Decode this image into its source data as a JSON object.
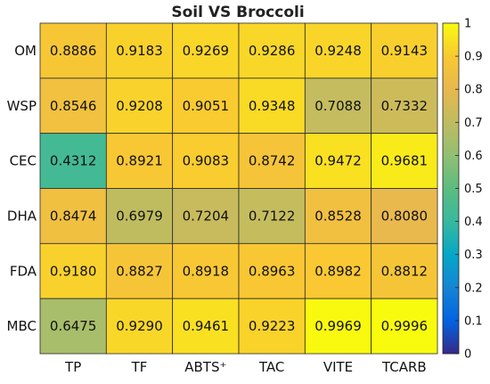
{
  "chart_data": {
    "type": "heatmap",
    "title": "Soil VS Broccoli",
    "rows": [
      "OM",
      "WSP",
      "CEC",
      "DHA",
      "FDA",
      "MBC"
    ],
    "columns": [
      "TP",
      "TF",
      "ABTS⁺",
      "TAC",
      "VITE",
      "TCARB"
    ],
    "values": [
      [
        0.8886,
        0.9183,
        0.9269,
        0.9286,
        0.9248,
        0.9143
      ],
      [
        0.8546,
        0.9208,
        0.9051,
        0.9348,
        0.7088,
        0.7332
      ],
      [
        0.4312,
        0.8921,
        0.9083,
        0.8742,
        0.9472,
        0.9681
      ],
      [
        0.8474,
        0.6979,
        0.7204,
        0.7122,
        0.8528,
        0.808
      ],
      [
        0.918,
        0.8827,
        0.8918,
        0.8963,
        0.8982,
        0.8812
      ],
      [
        0.6475,
        0.929,
        0.9461,
        0.9223,
        0.9969,
        0.9996
      ]
    ],
    "value_labels": [
      [
        "0.8886",
        "0.9183",
        "0.9269",
        "0.9286",
        "0.9248",
        "0.9143"
      ],
      [
        "0.8546",
        "0.9208",
        "0.9051",
        "0.9348",
        "0.7088",
        "0.7332"
      ],
      [
        "0.4312",
        "0.8921",
        "0.9083",
        "0.8742",
        "0.9472",
        "0.9681"
      ],
      [
        "0.8474",
        "0.6979",
        "0.7204",
        "0.7122",
        "0.8528",
        "0.8080"
      ],
      [
        "0.9180",
        "0.8827",
        "0.8918",
        "0.8963",
        "0.8982",
        "0.8812"
      ],
      [
        "0.6475",
        "0.9290",
        "0.9461",
        "0.9223",
        "0.9969",
        "0.9996"
      ]
    ],
    "colorbar": {
      "range": [
        0,
        1
      ],
      "ticks": [
        "0",
        "0.1",
        "0.2",
        "0.3",
        "0.4",
        "0.5",
        "0.6",
        "0.7",
        "0.8",
        "0.9",
        "1"
      ],
      "colormap": "parula"
    },
    "grid": true
  }
}
